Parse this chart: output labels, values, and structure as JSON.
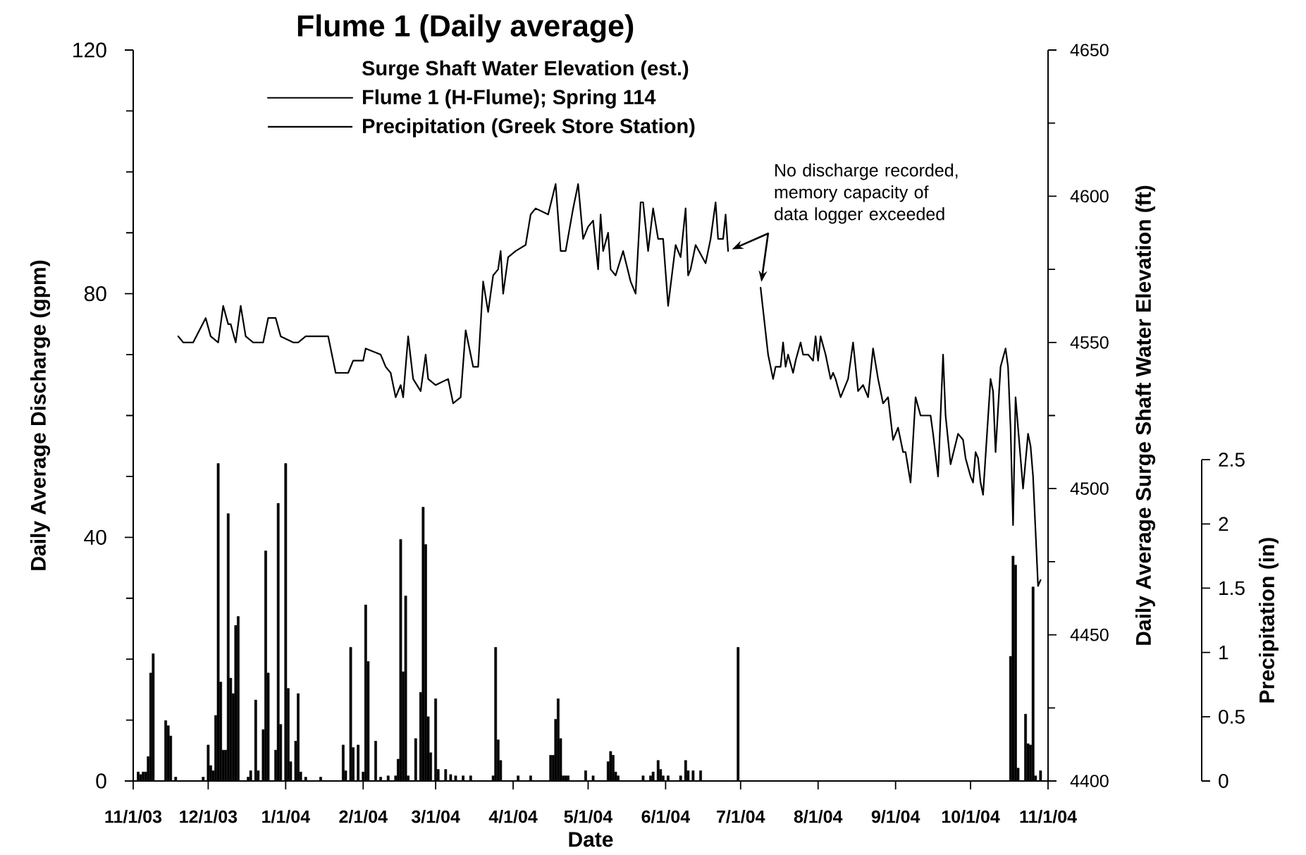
{
  "chart_data": {
    "type": "line",
    "title": "Flume 1 (Daily average)",
    "xlabel": "Date",
    "ylabel": "Daily Average Discharge (gpm)",
    "y2label": "Daily Average Surge Shaft Water Elevation (ft)",
    "y3label": "Precipitation (in)",
    "legend_title": "Surge Shaft Water Elevation (est.)",
    "legend": "top left",
    "xlim": [
      "2003-11-01",
      "2004-11-01"
    ],
    "xticks": [
      {
        "value": "2003-11-01",
        "label": "11/1/03"
      },
      {
        "value": "2003-12-01",
        "label": "12/1/03"
      },
      {
        "value": "2004-01-01",
        "label": "1/1/04"
      },
      {
        "value": "2004-02-01",
        "label": "2/1/04"
      },
      {
        "value": "2004-03-01",
        "label": "3/1/04"
      },
      {
        "value": "2004-04-01",
        "label": "4/1/04"
      },
      {
        "value": "2004-05-01",
        "label": "5/1/04"
      },
      {
        "value": "2004-06-01",
        "label": "6/1/04"
      },
      {
        "value": "2004-07-01",
        "label": "7/1/04"
      },
      {
        "value": "2004-08-01",
        "label": "8/1/04"
      },
      {
        "value": "2004-09-01",
        "label": "9/1/04"
      },
      {
        "value": "2004-10-01",
        "label": "10/1/04"
      },
      {
        "value": "2004-11-01",
        "label": "11/1/04"
      }
    ],
    "ylim": [
      0,
      120
    ],
    "yticks": [
      0,
      {
        "value": 10,
        "label": null
      },
      {
        "value": 20,
        "label": null
      },
      {
        "value": 30,
        "label": null
      },
      40,
      {
        "value": 50,
        "label": null
      },
      {
        "value": 60,
        "label": null
      },
      {
        "value": 70,
        "label": null
      },
      80,
      {
        "value": 90,
        "label": null
      },
      {
        "value": 100,
        "label": null
      },
      {
        "value": 110,
        "label": null
      },
      120
    ],
    "y2lim": [
      4400,
      4650
    ],
    "y2ticks": [
      4400,
      {
        "value": 4425,
        "label": null
      },
      4450,
      {
        "value": 4475,
        "label": null
      },
      4500,
      {
        "value": 4525,
        "label": null
      },
      4550,
      {
        "value": 4575,
        "label": null
      },
      4600,
      {
        "value": 4625,
        "label": null
      },
      4650
    ],
    "y3lim": [
      0,
      2.5
    ],
    "y3ticks": [
      0,
      0.5,
      1,
      1.5,
      2,
      2.5
    ],
    "series": [
      {
        "name": "Flume 1 (H-Flume); Spring 114",
        "color": "#000000",
        "x": [
          "2003-11-19",
          "2003-11-21",
          "2003-11-25",
          "2003-11-30",
          "2003-12-02",
          "2003-12-05",
          "2003-12-07",
          "2003-12-09",
          "2003-12-10",
          "2003-12-12",
          "2003-12-14",
          "2003-12-16",
          "2003-12-19",
          "2003-12-23",
          "2003-12-25",
          "2003-12-28",
          "2003-12-30",
          "2004-01-04",
          "2004-01-06",
          "2004-01-09",
          "2004-01-13",
          "2004-01-18",
          "2004-01-21",
          "2004-01-26",
          "2004-01-28",
          "2004-01-29",
          "2004-02-01",
          "2004-02-02",
          "2004-02-08",
          "2004-02-10",
          "2004-02-12",
          "2004-02-14",
          "2004-02-16",
          "2004-02-17",
          "2004-02-19",
          "2004-02-21",
          "2004-02-24",
          "2004-02-26",
          "2004-02-27",
          "2004-03-01",
          "2004-03-06",
          "2004-03-07",
          "2004-03-08",
          "2004-03-11",
          "2004-03-13",
          "2004-03-16",
          "2004-03-18",
          "2004-03-20",
          "2004-03-22",
          "2004-03-24",
          "2004-03-26",
          "2004-03-27",
          "2004-03-28",
          "2004-03-30",
          "2004-04-02",
          "2004-04-06",
          "2004-04-08",
          "2004-04-10",
          "2004-04-15",
          "2004-04-18",
          "2004-04-20",
          "2004-04-22",
          "2004-04-25",
          "2004-04-27",
          "2004-04-29",
          "2004-05-01",
          "2004-05-03",
          "2004-05-05",
          "2004-05-06",
          "2004-05-07",
          "2004-05-09",
          "2004-05-10",
          "2004-05-12",
          "2004-05-15",
          "2004-05-18",
          "2004-05-20",
          "2004-05-22",
          "2004-05-23",
          "2004-05-25",
          "2004-05-27",
          "2004-05-29",
          "2004-05-31",
          "2004-06-02",
          "2004-06-05",
          "2004-06-07",
          "2004-06-09",
          "2004-06-10",
          "2004-06-11",
          "2004-06-13",
          "2004-06-17",
          "2004-06-19",
          "2004-06-21",
          "2004-06-22",
          "2004-06-24",
          "2004-06-25",
          "2004-06-26",
          "2004-07-03",
          "2004-07-09",
          "2004-07-12",
          "2004-07-14",
          "2004-07-15",
          "2004-07-17",
          "2004-07-18",
          "2004-07-19",
          "2004-07-20",
          "2004-07-22",
          "2004-07-23",
          "2004-07-25",
          "2004-07-26",
          "2004-07-28",
          "2004-07-30",
          "2004-07-31",
          "2004-08-01",
          "2004-08-02",
          "2004-08-04",
          "2004-08-06",
          "2004-08-07",
          "2004-08-08",
          "2004-08-10",
          "2004-08-13",
          "2004-08-15",
          "2004-08-17",
          "2004-08-19",
          "2004-08-21",
          "2004-08-23",
          "2004-08-25",
          "2004-08-27",
          "2004-08-29",
          "2004-08-31",
          "2004-09-02",
          "2004-09-04",
          "2004-09-05",
          "2004-09-07",
          "2004-09-09",
          "2004-09-11",
          "2004-09-12",
          "2004-09-15",
          "2004-09-16",
          "2004-09-18",
          "2004-09-20",
          "2004-09-21",
          "2004-09-23",
          "2004-09-26",
          "2004-09-28",
          "2004-09-29",
          "2004-10-01",
          "2004-10-02",
          "2004-10-03",
          "2004-10-04",
          "2004-10-05",
          "2004-10-06",
          "2004-10-09",
          "2004-10-10",
          "2004-10-11",
          "2004-10-13",
          "2004-10-15",
          "2004-10-16",
          "2004-10-17",
          "2004-10-18",
          "2004-10-19",
          "2004-10-20",
          "2004-10-22",
          "2004-10-24",
          "2004-10-25",
          "2004-10-26",
          "2004-10-28",
          "2004-10-29"
        ],
        "values": [
          73,
          72,
          72,
          76,
          73,
          72,
          78,
          75,
          75,
          72,
          78,
          73,
          72,
          72,
          76,
          76,
          73,
          72,
          72,
          73,
          73,
          73,
          67,
          67,
          69,
          69,
          69,
          71,
          70,
          68,
          67,
          63,
          65,
          63,
          73,
          66,
          64,
          70,
          66,
          65,
          66,
          64,
          62,
          63,
          74,
          68,
          68,
          82,
          77,
          83,
          84,
          87,
          80,
          86,
          87,
          88,
          93,
          94,
          93,
          98,
          87,
          87,
          94,
          98,
          89,
          91,
          92,
          84,
          93,
          87,
          90,
          84,
          83,
          87,
          82,
          80,
          95,
          95,
          87,
          94,
          89,
          89,
          78,
          88,
          86,
          94,
          83,
          84,
          88,
          85,
          89,
          95,
          89,
          89,
          93,
          87,
          null,
          81,
          70,
          66,
          68,
          68,
          72,
          68,
          70,
          67,
          69,
          72,
          70,
          70,
          69,
          73,
          69,
          73,
          70,
          66,
          67,
          66,
          63,
          66,
          72,
          64,
          65,
          63,
          71,
          66,
          62,
          63,
          56,
          58,
          54,
          54,
          49,
          63,
          60,
          60,
          60,
          57,
          50,
          70,
          60,
          52,
          57,
          56,
          53,
          50,
          49,
          54,
          53,
          49,
          47,
          66,
          64,
          54,
          68,
          71,
          68,
          58,
          42,
          63,
          58,
          48,
          57,
          55,
          50,
          32,
          33
        ]
      },
      {
        "name": "Precipitation (Greek Store Station)",
        "color": "#000000",
        "type": "bar",
        "axis": "y3",
        "x": [
          "2003-11-03",
          "2003-11-04",
          "2003-11-05",
          "2003-11-06",
          "2003-11-07",
          "2003-11-08",
          "2003-11-09",
          "2003-11-14",
          "2003-11-15",
          "2003-11-16",
          "2003-11-18",
          "2003-11-29",
          "2003-12-01",
          "2003-12-02",
          "2003-12-03",
          "2003-12-04",
          "2003-12-05",
          "2003-12-06",
          "2003-12-07",
          "2003-12-08",
          "2003-12-09",
          "2003-12-10",
          "2003-12-11",
          "2003-12-12",
          "2003-12-13",
          "2003-12-17",
          "2003-12-18",
          "2003-12-20",
          "2003-12-21",
          "2003-12-23",
          "2003-12-24",
          "2003-12-25",
          "2003-12-28",
          "2003-12-29",
          "2003-12-30",
          "2004-01-01",
          "2004-01-02",
          "2004-01-03",
          "2004-01-05",
          "2004-01-06",
          "2004-01-07",
          "2004-01-09",
          "2004-01-15",
          "2004-01-24",
          "2004-01-25",
          "2004-01-27",
          "2004-01-28",
          "2004-01-30",
          "2004-02-01",
          "2004-02-02",
          "2004-02-03",
          "2004-02-06",
          "2004-02-08",
          "2004-02-11",
          "2004-02-14",
          "2004-02-15",
          "2004-02-16",
          "2004-02-17",
          "2004-02-18",
          "2004-02-19",
          "2004-02-22",
          "2004-02-24",
          "2004-02-25",
          "2004-02-26",
          "2004-02-27",
          "2004-02-28",
          "2004-03-01",
          "2004-03-02",
          "2004-03-05",
          "2004-03-07",
          "2004-03-09",
          "2004-03-12",
          "2004-03-15",
          "2004-03-24",
          "2004-03-25",
          "2004-03-26",
          "2004-03-27",
          "2004-04-03",
          "2004-04-08",
          "2004-04-16",
          "2004-04-17",
          "2004-04-18",
          "2004-04-19",
          "2004-04-20",
          "2004-04-21",
          "2004-04-22",
          "2004-04-23",
          "2004-04-30",
          "2004-05-03",
          "2004-05-09",
          "2004-05-10",
          "2004-05-11",
          "2004-05-12",
          "2004-05-13",
          "2004-05-23",
          "2004-05-26",
          "2004-05-27",
          "2004-05-29",
          "2004-05-30",
          "2004-05-31",
          "2004-06-02",
          "2004-06-07",
          "2004-06-09",
          "2004-06-10",
          "2004-06-12",
          "2004-06-15",
          "2004-06-30",
          "2004-10-17",
          "2004-10-18",
          "2004-10-19",
          "2004-10-20",
          "2004-10-23",
          "2004-10-24",
          "2004-10-25",
          "2004-10-26",
          "2004-10-27",
          "2004-10-29"
        ],
        "values": [
          0.07,
          0.05,
          0.07,
          0.07,
          0.19,
          0.84,
          0.99,
          0.47,
          0.43,
          0.35,
          0.03,
          0.03,
          0.28,
          0.12,
          0.08,
          0.51,
          2.47,
          0.77,
          0.24,
          0.24,
          2.08,
          0.8,
          0.68,
          1.21,
          1.28,
          0.03,
          0.08,
          0.63,
          0.08,
          0.4,
          1.79,
          0.84,
          0.24,
          2.16,
          0.44,
          2.47,
          0.72,
          0.15,
          0.31,
          0.68,
          0.07,
          0.03,
          0.03,
          0.28,
          0.08,
          1.04,
          0.26,
          0.28,
          0.07,
          1.37,
          0.93,
          0.31,
          0.03,
          0.04,
          0.04,
          0.17,
          1.88,
          0.85,
          1.44,
          0.04,
          0.33,
          0.69,
          2.13,
          1.84,
          0.5,
          0.22,
          0.64,
          0.09,
          0.09,
          0.05,
          0.04,
          0.04,
          0.04,
          0.04,
          1.04,
          0.32,
          0.16,
          0.04,
          0.04,
          0.2,
          0.2,
          0.48,
          0.64,
          0.33,
          0.04,
          0.04,
          0.04,
          0.08,
          0.04,
          0.15,
          0.23,
          0.2,
          0.07,
          0.04,
          0.04,
          0.04,
          0.07,
          0.16,
          0.09,
          0.04,
          0.04,
          0.04,
          0.16,
          0.08,
          0.08,
          0.08,
          1.04,
          0.97,
          1.75,
          1.68,
          0.1,
          0.52,
          0.29,
          0.28,
          1.51,
          0.04,
          0.08
        ]
      }
    ],
    "annotations": [
      "No discharge recorded, memory capacity of data logger exceeded"
    ]
  }
}
